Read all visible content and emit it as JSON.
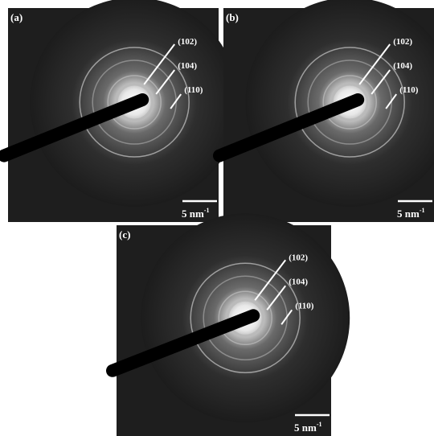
{
  "panels": [
    {
      "label": "(a)",
      "rings": [
        "(102)",
        "(104)",
        "(110)"
      ],
      "scale_bar": {
        "text": "5 nm",
        "exponent": "-1"
      }
    },
    {
      "label": "(b)",
      "rings": [
        "(102)",
        "(104)",
        "(110)"
      ],
      "scale_bar": {
        "text": "5 nm",
        "exponent": "-1"
      }
    },
    {
      "label": "(c)",
      "rings": [
        "(102)",
        "(104)",
        "(110)"
      ],
      "scale_bar": {
        "text": "5 nm",
        "exponent": "-1"
      }
    }
  ]
}
